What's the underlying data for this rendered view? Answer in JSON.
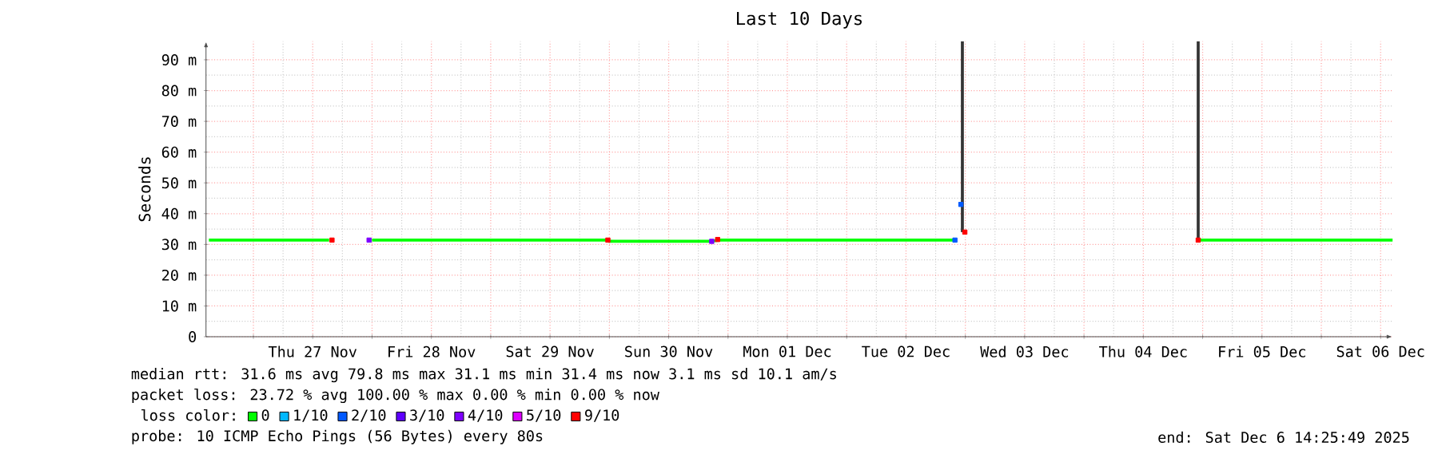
{
  "chart_data": {
    "type": "line",
    "title": "Last 10 Days",
    "ylabel": "Seconds",
    "xlim": [
      "2025-11-26T14:25",
      "2025-12-06T14:25"
    ],
    "xticks": [
      {
        "value": "2025-11-27T00:00",
        "label": null
      },
      {
        "value": "2025-11-27T12:00",
        "label": "Thu 27 Nov"
      },
      {
        "value": "2025-11-28T00:00",
        "label": null
      },
      {
        "value": "2025-11-28T12:00",
        "label": "Fri 28 Nov"
      },
      {
        "value": "2025-11-29T00:00",
        "label": null
      },
      {
        "value": "2025-11-29T12:00",
        "label": "Sat 29 Nov"
      },
      {
        "value": "2025-11-30T00:00",
        "label": null
      },
      {
        "value": "2025-11-30T12:00",
        "label": "Sun 30 Nov"
      },
      {
        "value": "2025-12-01T00:00",
        "label": null
      },
      {
        "value": "2025-12-01T12:00",
        "label": "Mon 01 Dec"
      },
      {
        "value": "2025-12-02T00:00",
        "label": null
      },
      {
        "value": "2025-12-02T12:00",
        "label": "Tue 02 Dec"
      },
      {
        "value": "2025-12-03T00:00",
        "label": null
      },
      {
        "value": "2025-12-03T12:00",
        "label": "Wed 03 Dec"
      },
      {
        "value": "2025-12-04T00:00",
        "label": null
      },
      {
        "value": "2025-12-04T12:00",
        "label": "Thu 04 Dec"
      },
      {
        "value": "2025-12-05T00:00",
        "label": null
      },
      {
        "value": "2025-12-05T12:00",
        "label": "Fri 05 Dec"
      },
      {
        "value": "2025-12-06T00:00",
        "label": null
      },
      {
        "value": "2025-12-06T12:00",
        "label": "Sat 06 Dec"
      }
    ],
    "ylim": [
      0,
      96
    ],
    "yticks": [
      0,
      {
        "value": 10,
        "label": "10 m"
      },
      {
        "value": 20,
        "label": "20 m"
      },
      {
        "value": 30,
        "label": "30 m"
      },
      {
        "value": 40,
        "label": "40 m"
      },
      {
        "value": 50,
        "label": "50 m"
      },
      {
        "value": 60,
        "label": "60 m"
      },
      {
        "value": 70,
        "label": "70 m"
      },
      {
        "value": 80,
        "label": "80 m"
      },
      {
        "value": 90,
        "label": "90 m"
      }
    ],
    "grid": true,
    "legend": "bottom",
    "legend_title": "loss color:",
    "series": [
      {
        "name": "0",
        "color": "#00ff00",
        "x": [
          "2025-11-26T15:00",
          "2025-11-27T15:18",
          "2025-11-27T19:00",
          "2025-11-28T00:00",
          "2025-11-29T23:42",
          "2025-11-30T00:00",
          "2025-11-30T20:24",
          "2025-11-30T22:12",
          "2025-12-02T21:54",
          "2025-12-03T12:00",
          "2025-12-04T23:24",
          "2025-12-06T14:25"
        ],
        "values": [
          31.4,
          31.4,
          null,
          31.4,
          31.4,
          31.0,
          31.0,
          31.4,
          31.4,
          null,
          31.4,
          31.4
        ]
      },
      {
        "name": "1/10",
        "color": "#00b8ff",
        "type": "scatter"
      },
      {
        "name": "2/10",
        "color": "#0059ff",
        "type": "scatter",
        "x": [
          "2025-12-02T21:54",
          "2025-12-02T23:06"
        ],
        "values": [
          31.4,
          43
        ]
      },
      {
        "name": "3/10",
        "color": "#5e00ff",
        "type": "scatter"
      },
      {
        "name": "4/10",
        "color": "#7e00ff",
        "type": "scatter",
        "x": [
          "2025-11-27T23:24",
          "2025-11-30T20:42"
        ],
        "values": [
          31.4,
          31.0
        ]
      },
      {
        "name": "5/10",
        "color": "#dd00ff",
        "type": "scatter"
      },
      {
        "name": "9/10",
        "color": "#ff0000",
        "type": "scatter",
        "x": [
          "2025-11-27T15:54",
          "2025-11-29T23:42",
          "2025-11-30T21:54",
          "2025-12-02T23:54",
          "2025-12-04T23:06"
        ],
        "values": [
          31.4,
          31.4,
          31.6,
          34,
          31.4
        ]
      },
      {
        "color": "#333333",
        "x": [
          "2025-12-02T23:24",
          "2025-12-02T23:24"
        ],
        "values": [
          34,
          96
        ]
      },
      {
        "color": "#333333",
        "x": [
          "2025-12-04T23:06",
          "2025-12-04T23:06"
        ],
        "values": [
          31.4,
          96
        ]
      }
    ],
    "annotations": [
      "median rtt:  31.6 ms avg  79.8 ms max  31.1 ms min  31.4 ms now  3.1 ms sd  10.1   am/s",
      "packet loss: 23.72 % avg  100.00 % max  0.00 % min  0.00 % now",
      "probe:       10 ICMP Echo Pings (56 Bytes) every 80s",
      "end: Sat Dec  6 14:25:49 2025"
    ]
  }
}
